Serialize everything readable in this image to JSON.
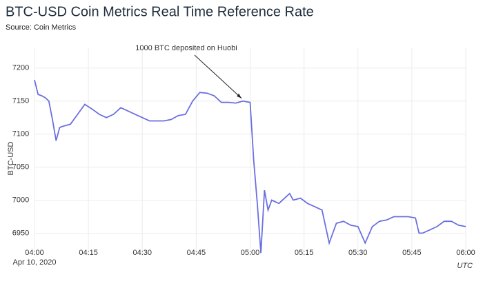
{
  "chart_data": {
    "type": "line",
    "title": "BTC-USD Coin Metrics Real Time Reference Rate",
    "subtitle": "Source: Coin Metrics",
    "y_label": "BTC-USD",
    "x_date_label": "Apr 10, 2020",
    "x_unit_label": "UTC",
    "annotation": {
      "text": "1000 BTC deposited on Huobi",
      "x": "04:58",
      "y": 7150
    },
    "x": [
      "04:00",
      "04:01",
      "04:02",
      "04:03",
      "04:04",
      "04:05",
      "04:06",
      "04:07",
      "04:08",
      "04:10",
      "04:12",
      "04:14",
      "04:16",
      "04:18",
      "04:20",
      "04:22",
      "04:24",
      "04:26",
      "04:28",
      "04:30",
      "04:32",
      "04:34",
      "04:36",
      "04:38",
      "04:40",
      "04:42",
      "04:44",
      "04:46",
      "04:48",
      "04:50",
      "04:52",
      "04:54",
      "04:56",
      "04:58",
      "05:00",
      "05:01",
      "05:02",
      "05:03",
      "05:04",
      "05:05",
      "05:06",
      "05:08",
      "05:10",
      "05:11",
      "05:12",
      "05:14",
      "05:16",
      "05:18",
      "05:20",
      "05:22",
      "05:24",
      "05:26",
      "05:28",
      "05:30",
      "05:32",
      "05:34",
      "05:36",
      "05:38",
      "05:40",
      "05:42",
      "05:44",
      "05:46",
      "05:47",
      "05:48",
      "05:50",
      "05:52",
      "05:54",
      "05:56",
      "05:58",
      "06:00"
    ],
    "series": [
      {
        "name": "BTC-USD",
        "color": "#6a6fe0",
        "values": [
          7182,
          7160,
          7158,
          7155,
          7150,
          7122,
          7090,
          7110,
          7112,
          7115,
          7130,
          7145,
          7138,
          7130,
          7125,
          7130,
          7140,
          7135,
          7130,
          7125,
          7120,
          7120,
          7120,
          7122,
          7128,
          7130,
          7150,
          7163,
          7162,
          7158,
          7148,
          7148,
          7147,
          7150,
          7148,
          7060,
          6995,
          6920,
          7015,
          6985,
          7000,
          6995,
          7005,
          7010,
          7000,
          7003,
          6995,
          6990,
          6985,
          6935,
          6965,
          6968,
          6962,
          6960,
          6935,
          6960,
          6968,
          6970,
          6975,
          6975,
          6975,
          6973,
          6950,
          6950,
          6955,
          6960,
          6968,
          6968,
          6962,
          6960
        ]
      }
    ],
    "xlim": [
      "04:00",
      "06:00"
    ],
    "xticks": [
      "04:00",
      "04:15",
      "04:30",
      "04:45",
      "05:00",
      "05:15",
      "05:30",
      "05:45",
      "06:00"
    ],
    "ylim": [
      6915,
      7230
    ],
    "yticks": [
      6950,
      7000,
      7050,
      7100,
      7150,
      7200
    ],
    "grid": true
  }
}
